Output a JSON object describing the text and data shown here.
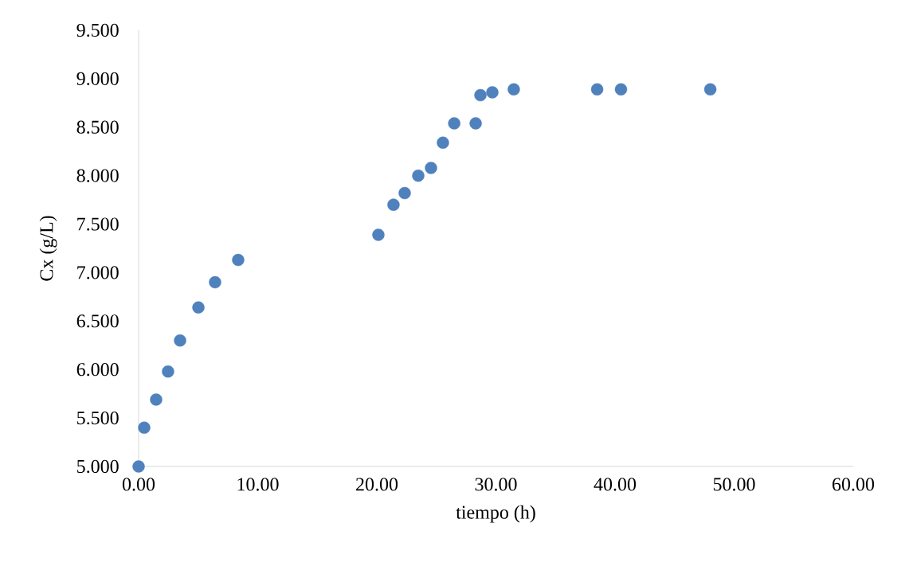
{
  "chart_data": {
    "type": "scatter",
    "xlabel": "tiempo (h)",
    "ylabel": "Cx (g/L)",
    "x": [
      0,
      0.47,
      1.47,
      2.47,
      3.48,
      5.02,
      6.42,
      8.36,
      20.13,
      21.4,
      22.34,
      23.48,
      24.55,
      25.55,
      26.5,
      28.3,
      28.7,
      29.7,
      31.5,
      38.5,
      40.5,
      48.0
    ],
    "values": [
      5.0,
      5.4,
      5.69,
      5.98,
      6.3,
      6.64,
      6.9,
      7.13,
      7.39,
      7.7,
      7.82,
      8.0,
      8.08,
      8.34,
      8.54,
      8.54,
      8.83,
      8.86,
      8.89,
      8.89,
      8.89,
      8.89
    ],
    "color": "#4f81bd",
    "marker": "circle",
    "xlim": [
      0,
      60
    ],
    "ylim": [
      5,
      9.5
    ],
    "xticks": [
      {
        "value": 0,
        "label": "0.00"
      },
      {
        "value": 10,
        "label": "10.00"
      },
      {
        "value": 20,
        "label": "20.00"
      },
      {
        "value": 30,
        "label": "30.00"
      },
      {
        "value": 40,
        "label": "40.00"
      },
      {
        "value": 50,
        "label": "50.00"
      },
      {
        "value": 60,
        "label": "60.00"
      }
    ],
    "yticks": [
      {
        "value": 5,
        "label": "5.000"
      },
      {
        "value": 5.5,
        "label": "5.500"
      },
      {
        "value": 6,
        "label": "6.000"
      },
      {
        "value": 6.5,
        "label": "6.500"
      },
      {
        "value": 7,
        "label": "7.000"
      },
      {
        "value": 7.5,
        "label": "7.500"
      },
      {
        "value": 8,
        "label": "8.000"
      },
      {
        "value": 8.5,
        "label": "8.500"
      },
      {
        "value": 9,
        "label": "9.000"
      },
      {
        "value": 9.5,
        "label": "9.500"
      }
    ],
    "grid": false
  }
}
